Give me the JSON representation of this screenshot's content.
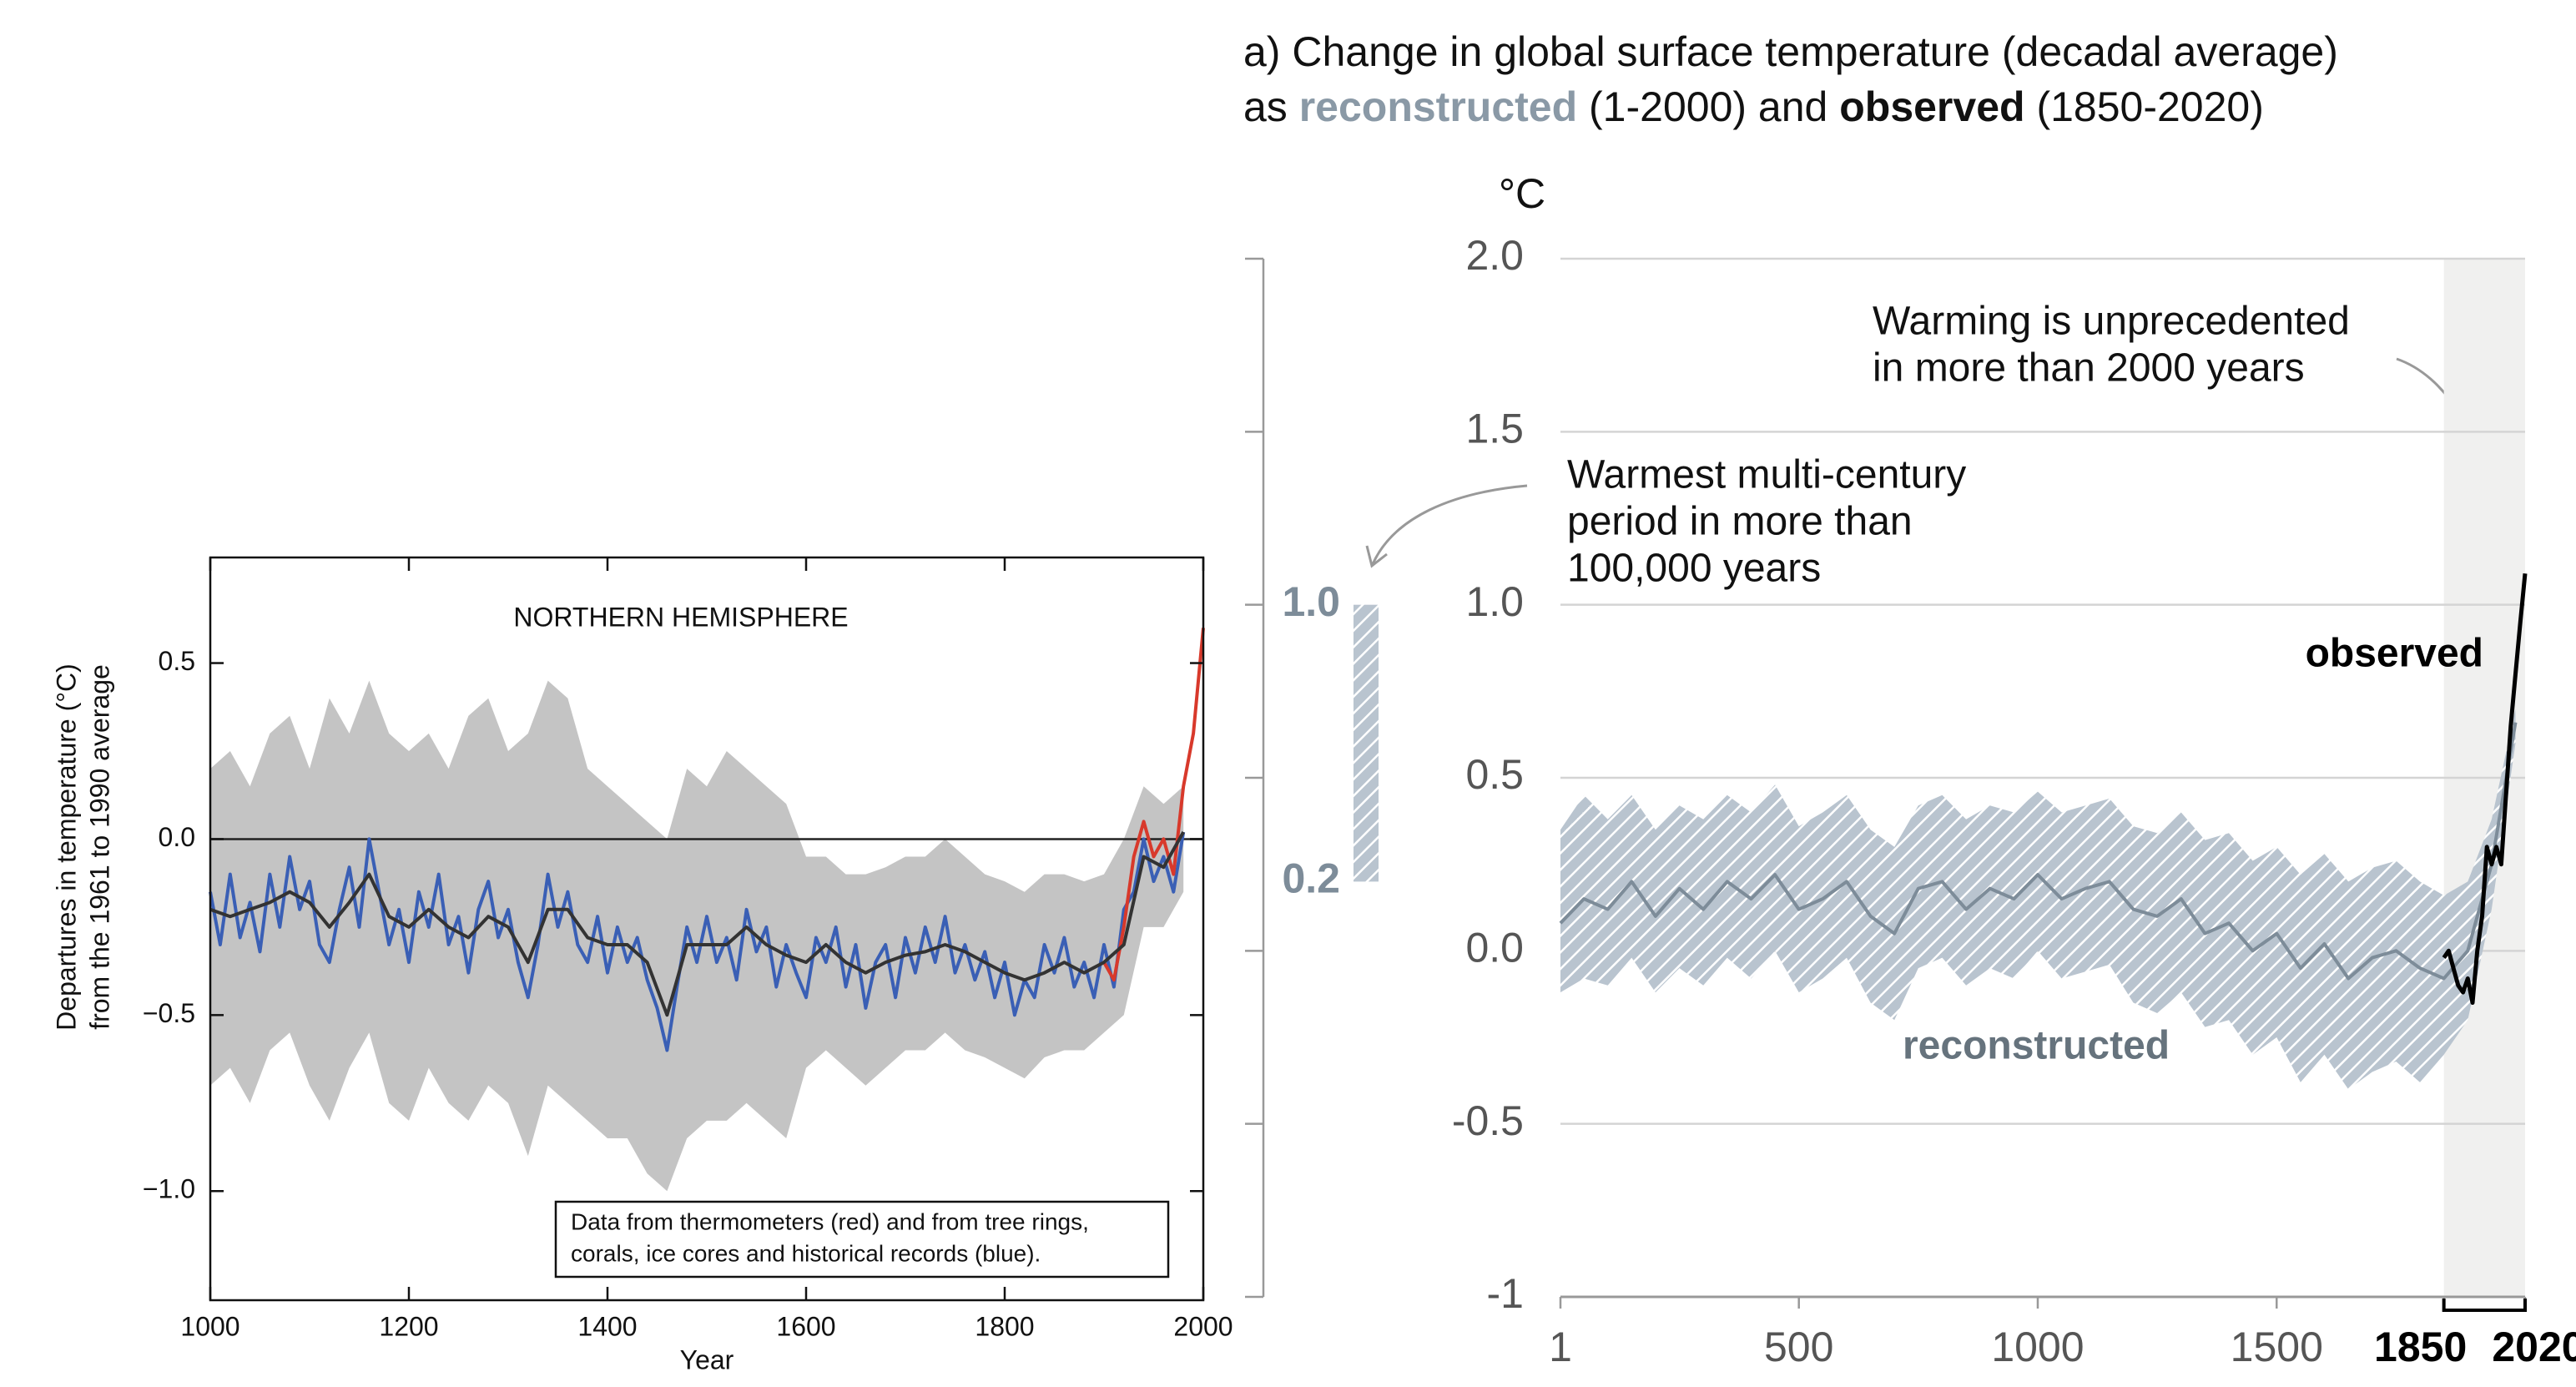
{
  "chart_data": [
    {
      "type": "line",
      "title": "NORTHERN HEMISPHERE",
      "x_label": "Year",
      "y_label": [
        "Departures in temperature (°C)",
        "from the 1961 to 1990 average"
      ],
      "note": [
        "Data from thermometers (red) and from tree rings,",
        "corals, ice cores and historical records (blue)."
      ],
      "xlim": [
        1000,
        2000
      ],
      "xticks": [
        1000,
        1200,
        1400,
        1600,
        1800,
        2000
      ],
      "ylim": [
        -1.31,
        0.8
      ],
      "yticks": [
        {
          "value": -1,
          "label": "−1.0"
        },
        {
          "value": -0.5,
          "label": "−0.5"
        },
        {
          "value": 0,
          "label": "0.0"
        },
        0.5
      ],
      "zero_line": true,
      "band": {
        "color": "#c4c4c4",
        "x": [
          1000,
          1020,
          1040,
          1060,
          1080,
          1100,
          1120,
          1140,
          1160,
          1180,
          1200,
          1220,
          1240,
          1260,
          1280,
          1300,
          1320,
          1340,
          1360,
          1380,
          1400,
          1420,
          1440,
          1460,
          1480,
          1500,
          1520,
          1540,
          1560,
          1580,
          1600,
          1620,
          1640,
          1660,
          1680,
          1700,
          1720,
          1740,
          1760,
          1780,
          1800,
          1820,
          1840,
          1860,
          1880,
          1900,
          1920,
          1940,
          1960,
          1980
        ],
        "upper": [
          0.2,
          0.25,
          0.15,
          0.3,
          0.35,
          0.2,
          0.4,
          0.3,
          0.45,
          0.3,
          0.25,
          0.3,
          0.2,
          0.35,
          0.4,
          0.25,
          0.3,
          0.45,
          0.4,
          0.2,
          0.15,
          0.1,
          0.05,
          0.0,
          0.2,
          0.15,
          0.25,
          0.2,
          0.15,
          0.1,
          -0.05,
          -0.05,
          -0.1,
          -0.1,
          -0.08,
          -0.05,
          -0.05,
          0.0,
          -0.05,
          -0.1,
          -0.12,
          -0.15,
          -0.1,
          -0.1,
          -0.12,
          -0.1,
          0.0,
          0.15,
          0.1,
          0.15
        ],
        "lower": [
          -0.7,
          -0.65,
          -0.75,
          -0.6,
          -0.55,
          -0.7,
          -0.8,
          -0.65,
          -0.55,
          -0.75,
          -0.8,
          -0.65,
          -0.75,
          -0.8,
          -0.7,
          -0.75,
          -0.9,
          -0.7,
          -0.75,
          -0.8,
          -0.85,
          -0.85,
          -0.95,
          -1.0,
          -0.85,
          -0.8,
          -0.8,
          -0.75,
          -0.8,
          -0.85,
          -0.65,
          -0.6,
          -0.65,
          -0.7,
          -0.65,
          -0.6,
          -0.6,
          -0.55,
          -0.6,
          -0.62,
          -0.65,
          -0.68,
          -0.62,
          -0.6,
          -0.6,
          -0.55,
          -0.5,
          -0.25,
          -0.25,
          -0.15
        ]
      },
      "series": [
        {
          "color": "#3a5fb5",
          "width": 4,
          "x": [
            1000,
            1010,
            1020,
            1030,
            1040,
            1050,
            1060,
            1070,
            1080,
            1090,
            1100,
            1110,
            1120,
            1130,
            1140,
            1150,
            1160,
            1170,
            1180,
            1190,
            1200,
            1210,
            1220,
            1230,
            1240,
            1250,
            1260,
            1270,
            1280,
            1290,
            1300,
            1310,
            1320,
            1330,
            1340,
            1350,
            1360,
            1370,
            1380,
            1390,
            1400,
            1410,
            1420,
            1430,
            1440,
            1450,
            1460,
            1470,
            1480,
            1490,
            1500,
            1510,
            1520,
            1530,
            1540,
            1550,
            1560,
            1570,
            1580,
            1590,
            1600,
            1610,
            1620,
            1630,
            1640,
            1650,
            1660,
            1670,
            1680,
            1690,
            1700,
            1710,
            1720,
            1730,
            1740,
            1750,
            1760,
            1770,
            1780,
            1790,
            1800,
            1810,
            1820,
            1830,
            1840,
            1850,
            1860,
            1870,
            1880,
            1890,
            1900,
            1910,
            1920,
            1930,
            1940,
            1950,
            1960,
            1970,
            1980
          ],
          "values": [
            -0.15,
            -0.3,
            -0.1,
            -0.28,
            -0.18,
            -0.32,
            -0.1,
            -0.25,
            -0.05,
            -0.2,
            -0.12,
            -0.3,
            -0.35,
            -0.2,
            -0.08,
            -0.25,
            0.0,
            -0.15,
            -0.3,
            -0.2,
            -0.35,
            -0.15,
            -0.25,
            -0.1,
            -0.3,
            -0.22,
            -0.38,
            -0.2,
            -0.12,
            -0.28,
            -0.2,
            -0.35,
            -0.45,
            -0.3,
            -0.1,
            -0.25,
            -0.15,
            -0.3,
            -0.35,
            -0.22,
            -0.38,
            -0.25,
            -0.35,
            -0.28,
            -0.4,
            -0.48,
            -0.6,
            -0.42,
            -0.25,
            -0.35,
            -0.22,
            -0.35,
            -0.28,
            -0.4,
            -0.2,
            -0.32,
            -0.25,
            -0.42,
            -0.3,
            -0.38,
            -0.45,
            -0.28,
            -0.35,
            -0.25,
            -0.42,
            -0.3,
            -0.48,
            -0.35,
            -0.3,
            -0.45,
            -0.28,
            -0.38,
            -0.25,
            -0.35,
            -0.22,
            -0.38,
            -0.3,
            -0.4,
            -0.32,
            -0.45,
            -0.35,
            -0.5,
            -0.4,
            -0.45,
            -0.3,
            -0.38,
            -0.28,
            -0.42,
            -0.35,
            -0.45,
            -0.3,
            -0.42,
            -0.2,
            -0.15,
            0.0,
            -0.12,
            -0.05,
            -0.15,
            0.02
          ]
        },
        {
          "color": "#d8392b",
          "width": 4,
          "x": [
            1900,
            1910,
            1920,
            1930,
            1940,
            1950,
            1960,
            1970,
            1980,
            1990,
            2000
          ],
          "values": [
            -0.35,
            -0.4,
            -0.25,
            -0.05,
            0.05,
            -0.05,
            0.0,
            -0.1,
            0.15,
            0.3,
            0.6
          ]
        },
        {
          "color": "#333333",
          "width": 4,
          "x": [
            1000,
            1020,
            1040,
            1060,
            1080,
            1100,
            1120,
            1140,
            1160,
            1180,
            1200,
            1220,
            1240,
            1260,
            1280,
            1300,
            1320,
            1340,
            1360,
            1380,
            1400,
            1420,
            1440,
            1460,
            1480,
            1500,
            1520,
            1540,
            1560,
            1580,
            1600,
            1620,
            1640,
            1660,
            1680,
            1700,
            1720,
            1740,
            1760,
            1780,
            1800,
            1820,
            1840,
            1860,
            1880,
            1900,
            1920,
            1940,
            1960,
            1980
          ],
          "values": [
            -0.2,
            -0.22,
            -0.2,
            -0.18,
            -0.15,
            -0.18,
            -0.25,
            -0.18,
            -0.1,
            -0.22,
            -0.25,
            -0.2,
            -0.25,
            -0.28,
            -0.22,
            -0.25,
            -0.35,
            -0.2,
            -0.2,
            -0.28,
            -0.3,
            -0.3,
            -0.35,
            -0.5,
            -0.3,
            -0.3,
            -0.3,
            -0.25,
            -0.3,
            -0.33,
            -0.35,
            -0.3,
            -0.35,
            -0.38,
            -0.35,
            -0.33,
            -0.32,
            -0.3,
            -0.32,
            -0.35,
            -0.38,
            -0.4,
            -0.38,
            -0.35,
            -0.38,
            -0.35,
            -0.3,
            -0.05,
            -0.08,
            0.02
          ]
        }
      ]
    },
    {
      "type": "line",
      "title": [
        [
          "a) Change in global surface temperature (decadal average)"
        ],
        [
          "as ",
          "reconstructed",
          " (1-2000) and ",
          "observed",
          " (1850-2020)"
        ]
      ],
      "y_label": "°C",
      "xlim": [
        1,
        2020
      ],
      "xticks": [
        1,
        500,
        1000,
        1500,
        1850,
        2020
      ],
      "ylim": [
        -1,
        2
      ],
      "yticks": [
        -1,
        -0.5,
        {
          "value": 0,
          "label": "0.0"
        },
        0.5,
        {
          "value": 1,
          "label": "1.0"
        },
        1.5,
        {
          "value": 2,
          "label": "2.0"
        }
      ],
      "grid": true,
      "shaded_span": [
        1850,
        2020
      ],
      "band": {
        "color": "#b9c4cf",
        "hatched": true,
        "x": [
          1,
          50,
          100,
          150,
          200,
          250,
          300,
          350,
          400,
          450,
          500,
          550,
          600,
          650,
          700,
          750,
          800,
          850,
          900,
          950,
          1000,
          1050,
          1100,
          1150,
          1200,
          1250,
          1300,
          1350,
          1400,
          1450,
          1500,
          1550,
          1600,
          1650,
          1700,
          1750,
          1800,
          1850,
          1900,
          1950,
          2000
        ],
        "upper": [
          0.35,
          0.45,
          0.38,
          0.45,
          0.35,
          0.42,
          0.38,
          0.45,
          0.4,
          0.48,
          0.36,
          0.4,
          0.45,
          0.35,
          0.3,
          0.42,
          0.45,
          0.38,
          0.42,
          0.4,
          0.46,
          0.4,
          0.42,
          0.44,
          0.36,
          0.34,
          0.4,
          0.32,
          0.34,
          0.26,
          0.3,
          0.22,
          0.28,
          0.2,
          0.24,
          0.26,
          0.2,
          0.16,
          0.2,
          0.38,
          0.7
        ],
        "lower": [
          -0.12,
          -0.08,
          -0.1,
          -0.02,
          -0.12,
          -0.05,
          -0.1,
          -0.02,
          -0.08,
          0.0,
          -0.12,
          -0.08,
          -0.02,
          -0.15,
          -0.2,
          -0.05,
          -0.02,
          -0.1,
          -0.05,
          -0.08,
          0.0,
          -0.08,
          -0.06,
          -0.04,
          -0.15,
          -0.18,
          -0.12,
          -0.22,
          -0.2,
          -0.3,
          -0.25,
          -0.38,
          -0.3,
          -0.4,
          -0.35,
          -0.32,
          -0.38,
          -0.3,
          -0.2,
          0.12,
          0.6
        ]
      },
      "series": [
        {
          "name": "reconstructed",
          "color": "#7d8c99",
          "width": 4,
          "x": [
            1,
            50,
            100,
            150,
            200,
            250,
            300,
            350,
            400,
            450,
            500,
            550,
            600,
            650,
            700,
            750,
            800,
            850,
            900,
            950,
            1000,
            1050,
            1100,
            1150,
            1200,
            1250,
            1300,
            1350,
            1400,
            1450,
            1500,
            1550,
            1600,
            1650,
            1700,
            1750,
            1800,
            1850,
            1900,
            1950,
            2000
          ],
          "values": [
            0.08,
            0.15,
            0.12,
            0.2,
            0.1,
            0.18,
            0.12,
            0.2,
            0.15,
            0.22,
            0.12,
            0.15,
            0.2,
            0.1,
            0.05,
            0.18,
            0.2,
            0.12,
            0.18,
            0.15,
            0.22,
            0.15,
            0.18,
            0.2,
            0.12,
            0.1,
            0.15,
            0.05,
            0.08,
            0.0,
            0.05,
            -0.05,
            0.02,
            -0.08,
            -0.02,
            0.0,
            -0.05,
            -0.08,
            0.0,
            0.25,
            0.66
          ]
        },
        {
          "name": "observed",
          "color": "#000000",
          "width": 5,
          "x": [
            1850,
            1860,
            1870,
            1880,
            1890,
            1900,
            1910,
            1920,
            1930,
            1940,
            1950,
            1960,
            1970,
            1980,
            1990,
            2000,
            2010,
            2020
          ],
          "values": [
            -0.02,
            0.0,
            -0.05,
            -0.1,
            -0.12,
            -0.08,
            -0.15,
            0.0,
            0.1,
            0.3,
            0.25,
            0.3,
            0.25,
            0.45,
            0.65,
            0.8,
            0.95,
            1.09
          ]
        }
      ],
      "annotations": [
        [
          "Warming is unprecedented",
          "in more than 2000 years"
        ],
        [
          "Warmest multi-century",
          "period in more than",
          "100,000 years"
        ]
      ],
      "paleo_range": {
        "values": [
          0.2,
          1.0
        ],
        "value_labels": [
          "0.2",
          "1.0"
        ],
        "color": "#b9c4cf"
      }
    }
  ]
}
